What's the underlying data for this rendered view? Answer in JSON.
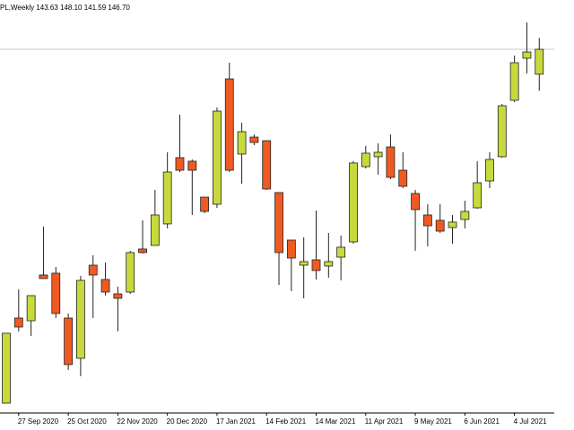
{
  "chart_data": {
    "type": "candlestick",
    "title": "PL,Weekly 143.63 148.10 141.59 146.70",
    "categories": [
      null,
      "27 Sep 2020",
      null,
      null,
      null,
      "25 Oct 2020",
      null,
      null,
      null,
      "22 Nov 2020",
      null,
      null,
      null,
      "20 Dec 2020",
      null,
      null,
      null,
      "17 Jan 2021",
      null,
      null,
      null,
      "14 Feb 2021",
      null,
      null,
      null,
      "14 Mar 2021",
      null,
      null,
      null,
      "11 Apr 2021",
      null,
      null,
      null,
      "9 May 2021",
      null,
      null,
      null,
      "6 Jun 2021",
      null,
      null,
      null,
      "4 Jul 2021",
      null,
      null
    ],
    "open": [
      103.13,
      113.61,
      113.28,
      118.91,
      119.13,
      113.61,
      108.65,
      120.12,
      118.36,
      116.59,
      116.81,
      122.11,
      122.55,
      125.2,
      133.36,
      132.92,
      128.5,
      127.62,
      143.06,
      133.8,
      135.89,
      135.45,
      129.06,
      123.21,
      120.12,
      120.78,
      120.01,
      121.11,
      122.99,
      132.25,
      133.47,
      134.68,
      131.81,
      128.95,
      126.3,
      125.64,
      124.75,
      125.75,
      127.18,
      130.49,
      133.47,
      140.42,
      145.6,
      143.63
    ],
    "high": [
      111.74,
      117.14,
      116.37,
      124.86,
      119.9,
      114.17,
      118.8,
      121.34,
      120.45,
      117.47,
      121.89,
      125.64,
      129.39,
      134.02,
      138.65,
      133.14,
      128.5,
      139.53,
      145.05,
      137.66,
      136.22,
      135.45,
      129.06,
      123.21,
      123.54,
      126.85,
      124.09,
      123.76,
      132.92,
      134.79,
      135.12,
      136.22,
      134.02,
      129.39,
      127.62,
      127.62,
      126.3,
      128.06,
      132.92,
      134.02,
      139.97,
      145.93,
      150.01,
      148.1
    ],
    "low": [
      103.13,
      111.96,
      111.41,
      118.47,
      113.61,
      107.21,
      106.44,
      113.61,
      116.37,
      111.96,
      116.59,
      121.56,
      122.55,
      124.64,
      131.59,
      126.3,
      126.52,
      127.18,
      131.59,
      130.16,
      134.9,
      129.39,
      117.69,
      116.92,
      116.04,
      118.36,
      118.58,
      118.25,
      122.77,
      132.03,
      131.26,
      130.71,
      129.61,
      121.89,
      122.44,
      124.09,
      122.77,
      124.64,
      127.07,
      129.61,
      133.36,
      140.2,
      143.73,
      141.59
    ],
    "close": [
      111.74,
      112.51,
      116.37,
      118.47,
      114.17,
      107.88,
      118.25,
      118.91,
      116.81,
      116.04,
      121.67,
      121.67,
      126.3,
      131.59,
      131.81,
      131.81,
      126.74,
      139.09,
      131.81,
      136.56,
      135.23,
      129.5,
      121.67,
      121.0,
      120.56,
      119.46,
      120.56,
      122.33,
      132.7,
      133.91,
      134.02,
      130.93,
      129.83,
      126.96,
      124.97,
      124.31,
      125.42,
      126.74,
      130.27,
      133.14,
      139.75,
      145.05,
      146.37,
      146.7
    ],
    "up_color": "#c8d93c",
    "down_color": "#f05a22",
    "ylim": [
      102.03,
      152.77
    ],
    "grid": false
  }
}
